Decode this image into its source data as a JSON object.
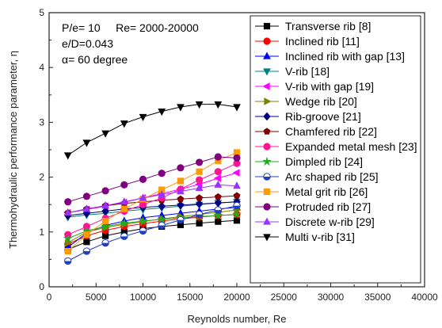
{
  "chart_data": {
    "type": "line",
    "xlabel": "Reynolds number, Re",
    "ylabel": "Thermohydraulic performance parameter, η",
    "xlim": [
      0,
      40000
    ],
    "ylim": [
      0,
      5
    ],
    "x_ticks": [
      0,
      5000,
      10000,
      15000,
      20000,
      25000,
      30000,
      35000,
      40000
    ],
    "y_ticks": [
      0,
      1,
      2,
      3,
      4,
      5
    ],
    "grid": false,
    "legend_position": "top-right",
    "annotations": [
      "P/e= 10     Re= 2000-20000",
      "e/D=0.043",
      "α= 60 degree"
    ],
    "series": [
      {
        "name": "Transverse rib [8]",
        "color": "#000000",
        "marker": "square",
        "x": [
          2000,
          4000,
          6000,
          8000,
          10000,
          12000,
          14000,
          16000,
          18000,
          20000
        ],
        "y": [
          0.68,
          0.82,
          0.93,
          1.0,
          1.06,
          1.1,
          1.13,
          1.16,
          1.19,
          1.21
        ]
      },
      {
        "name": "Inclined rib [11]",
        "color": "#ff0000",
        "marker": "circle",
        "x": [
          2000,
          4000,
          6000,
          8000,
          10000,
          12000,
          14000,
          16000,
          18000,
          20000
        ],
        "y": [
          0.78,
          0.93,
          1.03,
          1.1,
          1.15,
          1.2,
          1.24,
          1.27,
          1.3,
          1.32
        ]
      },
      {
        "name": "Inclined rib with gap [13]",
        "color": "#0000ff",
        "marker": "triangle-up",
        "x": [
          2000,
          4000,
          6000,
          8000,
          10000,
          12000,
          14000,
          16000,
          18000,
          20000
        ],
        "y": [
          0.72,
          0.98,
          1.12,
          1.2,
          1.26,
          1.3,
          1.34,
          1.38,
          1.42,
          1.45
        ]
      },
      {
        "name": "V-rib [18]",
        "color": "#008080",
        "marker": "triangle-down",
        "x": [
          2000,
          4000,
          6000,
          8000,
          10000,
          12000,
          14000,
          16000,
          18000,
          20000
        ],
        "y": [
          1.27,
          1.31,
          1.34,
          1.38,
          1.41,
          1.44,
          1.47,
          1.5,
          1.53,
          1.55
        ]
      },
      {
        "name": "V-rib with gap [19]",
        "color": "#ff00ff",
        "marker": "triangle-left",
        "x": [
          2000,
          4000,
          6000,
          8000,
          10000,
          12000,
          14000,
          16000,
          18000,
          20000
        ],
        "y": [
          1.35,
          1.41,
          1.47,
          1.54,
          1.62,
          1.7,
          1.78,
          1.87,
          1.98,
          2.08
        ]
      },
      {
        "name": "Wedge rib [20]",
        "color": "#808000",
        "marker": "triangle-right",
        "x": [
          2000,
          4000,
          6000,
          8000,
          10000,
          12000,
          14000,
          16000,
          18000,
          20000
        ],
        "y": [
          0.8,
          1.0,
          1.08,
          1.14,
          1.19,
          1.24,
          1.28,
          1.32,
          1.36,
          1.4
        ]
      },
      {
        "name": "Rib-groove [21]",
        "color": "#000080",
        "marker": "diamond",
        "x": [
          2000,
          4000,
          6000,
          8000,
          10000,
          12000,
          14000,
          16000,
          18000,
          20000
        ],
        "y": [
          1.3,
          1.34,
          1.38,
          1.42,
          1.45,
          1.47,
          1.49,
          1.51,
          1.53,
          1.55
        ]
      },
      {
        "name": "Chamfered rib [22]",
        "color": "#800000",
        "marker": "pentagon",
        "x": [
          2000,
          4000,
          6000,
          8000,
          10000,
          12000,
          14000,
          16000,
          18000,
          20000
        ],
        "y": [
          1.35,
          1.42,
          1.48,
          1.52,
          1.55,
          1.58,
          1.6,
          1.62,
          1.64,
          1.66
        ]
      },
      {
        "name": "Expanded metal mesh [23]",
        "color": "#ff1493",
        "marker": "circle",
        "x": [
          2000,
          4000,
          6000,
          8000,
          10000,
          12000,
          14000,
          16000,
          18000,
          20000
        ],
        "y": [
          0.95,
          1.1,
          1.25,
          1.38,
          1.5,
          1.62,
          1.78,
          1.95,
          2.1,
          2.25
        ]
      },
      {
        "name": "Dimpled rib [24]",
        "color": "#22aa22",
        "marker": "star",
        "x": [
          2000,
          4000,
          6000,
          8000,
          10000,
          12000,
          14000,
          16000,
          18000,
          20000
        ],
        "y": [
          0.88,
          1.02,
          1.1,
          1.16,
          1.2,
          1.23,
          1.26,
          1.28,
          1.3,
          1.32
        ]
      },
      {
        "name": "Arc shaped rib [25]",
        "color": "#1f3fbf",
        "marker": "half-circle",
        "x": [
          2000,
          4000,
          6000,
          8000,
          10000,
          12000,
          14000,
          16000,
          18000,
          20000
        ],
        "y": [
          0.47,
          0.65,
          0.8,
          0.92,
          1.02,
          1.12,
          1.22,
          1.32,
          1.4,
          1.48
        ]
      },
      {
        "name": "Metal grit rib [26]",
        "color": "#ff9900",
        "marker": "square",
        "x": [
          2000,
          4000,
          6000,
          8000,
          10000,
          12000,
          14000,
          16000,
          18000,
          20000
        ],
        "y": [
          0.65,
          0.95,
          1.2,
          1.42,
          1.6,
          1.77,
          1.93,
          2.1,
          2.3,
          2.45
        ]
      },
      {
        "name": "Protruded rib [27]",
        "color": "#800080",
        "marker": "circle",
        "x": [
          2000,
          4000,
          6000,
          8000,
          10000,
          12000,
          14000,
          16000,
          18000,
          20000
        ],
        "y": [
          1.55,
          1.65,
          1.75,
          1.86,
          1.96,
          2.07,
          2.17,
          2.27,
          2.37,
          2.35
        ]
      },
      {
        "name": "Discrete w-rib [29]",
        "color": "#9933ff",
        "marker": "triangle-up",
        "x": [
          2000,
          4000,
          6000,
          8000,
          10000,
          12000,
          14000,
          16000,
          18000,
          20000
        ],
        "y": [
          1.35,
          1.42,
          1.48,
          1.55,
          1.62,
          1.68,
          1.74,
          1.8,
          1.86,
          1.84
        ]
      },
      {
        "name": "Multi v-rib [31]",
        "color": "#000000",
        "marker": "triangle-down",
        "x": [
          2000,
          4000,
          6000,
          8000,
          10000,
          12000,
          14000,
          16000,
          18000,
          20000
        ],
        "y": [
          2.4,
          2.63,
          2.8,
          2.98,
          3.1,
          3.2,
          3.28,
          3.33,
          3.33,
          3.28
        ]
      }
    ]
  }
}
